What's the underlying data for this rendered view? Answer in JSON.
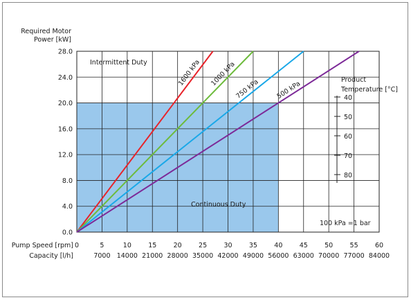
{
  "chart_data": {
    "type": "line",
    "ylabel_lines": [
      "Required Motor",
      "Power [kW]"
    ],
    "y_ticks": [
      "28.0",
      "24.0",
      "20.0",
      "16.0",
      "12.0",
      "8.0",
      "4.0",
      "0.0"
    ],
    "ylim": [
      0,
      28
    ],
    "x_speed_label": "Pump Speed [rpm]",
    "x_speed_ticks": [
      "0",
      "5",
      "10",
      "15",
      "20",
      "25",
      "30",
      "35",
      "40",
      "45",
      "50",
      "55",
      "60"
    ],
    "x_capacity_label": "Capacity [l/h]",
    "x_capacity_ticks": [
      "7000",
      "14000",
      "21000",
      "28000",
      "35000",
      "42000",
      "49000",
      "56000",
      "63000",
      "70000",
      "77000",
      "84000"
    ],
    "xlim": [
      0,
      60
    ],
    "grid": true,
    "regions": {
      "intermittent": "Intermittent Duty",
      "continuous": "Continuous Duty",
      "continuous_max_speed": 40,
      "continuous_max_power": 20
    },
    "series": [
      {
        "name": "1600 kPa",
        "color": "#e8232a",
        "x": [
          0,
          27
        ],
        "y": [
          0,
          28
        ]
      },
      {
        "name": "1000 kPa",
        "color": "#6dbb3c",
        "x": [
          0,
          35
        ],
        "y": [
          0,
          28
        ]
      },
      {
        "name": "750 kPa",
        "color": "#1aa8e8",
        "x": [
          0,
          45
        ],
        "y": [
          0,
          28
        ]
      },
      {
        "name": "500 kPa",
        "color": "#7d2a98",
        "x": [
          0,
          56
        ],
        "y": [
          0,
          28
        ]
      }
    ],
    "temperature": {
      "title_lines": [
        "Product",
        "Temperature [°C]"
      ],
      "ticks": [
        "40",
        "50",
        "60",
        "70",
        "80"
      ]
    },
    "note": "100 kPa =1 bar",
    "continuous_fill": "#9ac8ec"
  }
}
